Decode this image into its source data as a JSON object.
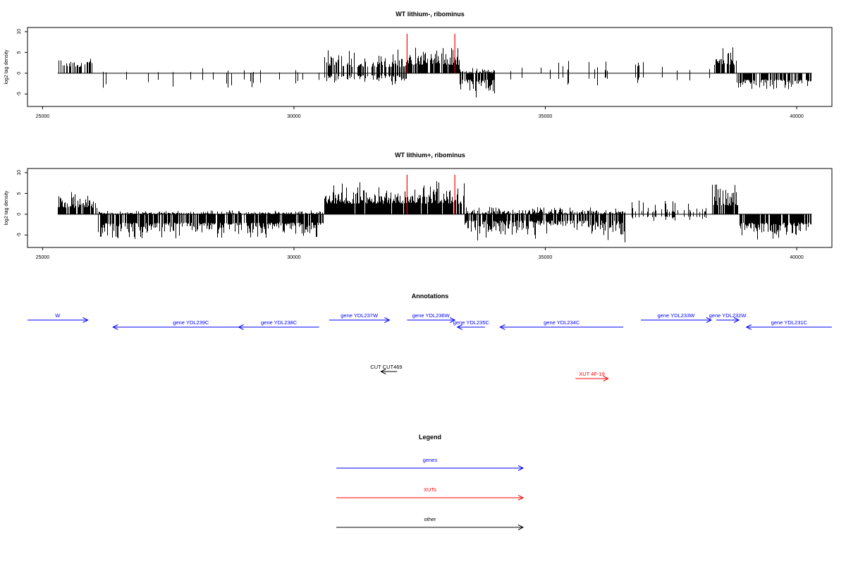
{
  "chart_data": [
    {
      "type": "bar",
      "title": "WT lithium-, ribominus",
      "ylabel": "log2 tag density",
      "xlabel": "",
      "xlim": [
        24700,
        40700
      ],
      "ylim": [
        -8,
        11
      ],
      "x_ticks": [
        "25000",
        "30000",
        "35000",
        "40000"
      ],
      "y_ticks": [
        "-5",
        "0",
        "5",
        "10"
      ],
      "data_range": [
        25300,
        40300
      ],
      "red_markers": [
        {
          "x": 32250,
          "y": 9.5
        },
        {
          "x": 33200,
          "y": 9.5
        }
      ],
      "segments": [
        {
          "from": 25300,
          "to": 26000,
          "density": 0.45,
          "pos": [
            1.5,
            4.0
          ],
          "neg": [
            0,
            0
          ]
        },
        {
          "from": 26000,
          "to": 30600,
          "density": 0.07,
          "pos": [
            0,
            1.5
          ],
          "neg": [
            -1.5,
            -4.0
          ]
        },
        {
          "from": 30600,
          "to": 32250,
          "density": 0.6,
          "pos": [
            1.5,
            6.0
          ],
          "neg": [
            -0.5,
            -3.0
          ]
        },
        {
          "from": 32250,
          "to": 33300,
          "density": 0.85,
          "pos": [
            2.0,
            7.5
          ],
          "neg": [
            0,
            0
          ]
        },
        {
          "from": 33300,
          "to": 34000,
          "density": 0.8,
          "pos": [
            0,
            1.5
          ],
          "neg": [
            -1.5,
            -6.0
          ]
        },
        {
          "from": 34000,
          "to": 38300,
          "density": 0.07,
          "pos": [
            0.5,
            3.5
          ],
          "neg": [
            -1.0,
            -3.5
          ]
        },
        {
          "from": 38300,
          "to": 38800,
          "density": 0.6,
          "pos": [
            2.0,
            7.0
          ],
          "neg": [
            0,
            0
          ]
        },
        {
          "from": 38800,
          "to": 40300,
          "density": 0.75,
          "pos": [
            0,
            0
          ],
          "neg": [
            -1.5,
            -4.5
          ]
        }
      ]
    },
    {
      "type": "bar",
      "title": "WT lithium+, ribominus",
      "ylabel": "log2 tag density",
      "xlabel": "",
      "xlim": [
        24700,
        40700
      ],
      "ylim": [
        -8,
        11
      ],
      "x_ticks": [
        "25000",
        "30000",
        "35000",
        "40000"
      ],
      "y_ticks": [
        "-5",
        "0",
        "5",
        "10"
      ],
      "data_range": [
        25300,
        40300
      ],
      "red_markers": [
        {
          "x": 32250,
          "y": 9.5
        },
        {
          "x": 33200,
          "y": 9.5
        }
      ],
      "segments": [
        {
          "from": 25300,
          "to": 26100,
          "density": 0.85,
          "pos": [
            1.5,
            5.5
          ],
          "neg": [
            0,
            0
          ]
        },
        {
          "from": 26100,
          "to": 30600,
          "density": 0.85,
          "pos": [
            0,
            1.0
          ],
          "neg": [
            -2.0,
            -6.5
          ]
        },
        {
          "from": 30600,
          "to": 32250,
          "density": 0.95,
          "pos": [
            2.5,
            8.0
          ],
          "neg": [
            0,
            0
          ]
        },
        {
          "from": 32250,
          "to": 33400,
          "density": 0.9,
          "pos": [
            2.5,
            8.5
          ],
          "neg": [
            0,
            0
          ]
        },
        {
          "from": 33400,
          "to": 36600,
          "density": 0.85,
          "pos": [
            0,
            2.0
          ],
          "neg": [
            -1.5,
            -7.0
          ]
        },
        {
          "from": 36600,
          "to": 38300,
          "density": 0.2,
          "pos": [
            0.5,
            4.0
          ],
          "neg": [
            -0.5,
            -2.0
          ]
        },
        {
          "from": 38300,
          "to": 38850,
          "density": 0.85,
          "pos": [
            2.0,
            8.5
          ],
          "neg": [
            0,
            0
          ]
        },
        {
          "from": 38850,
          "to": 40300,
          "density": 0.9,
          "pos": [
            0,
            0
          ],
          "neg": [
            -2.0,
            -7.0
          ]
        }
      ]
    }
  ],
  "annotations": {
    "title": "Annotations",
    "items": [
      {
        "label": "W",
        "kind": "gene",
        "from": 24700,
        "to": 25900,
        "dir": "right",
        "row": 0
      },
      {
        "label": "gene YDL239C",
        "kind": "gene",
        "from": 26400,
        "to": 29500,
        "dir": "left",
        "row": 1
      },
      {
        "label": "gene YDL238C",
        "kind": "gene",
        "from": 28900,
        "to": 30500,
        "dir": "left",
        "row": 1
      },
      {
        "label": "gene YDL237W",
        "kind": "gene",
        "from": 30700,
        "to": 31900,
        "dir": "right",
        "row": 0
      },
      {
        "label": "gene YDL236W",
        "kind": "gene",
        "from": 32250,
        "to": 33200,
        "dir": "right",
        "row": 0
      },
      {
        "label": "gene YDL235C",
        "kind": "gene",
        "from": 33250,
        "to": 33800,
        "dir": "left",
        "row": 1
      },
      {
        "label": "gene YDL234C",
        "kind": "gene",
        "from": 34100,
        "to": 36550,
        "dir": "left",
        "row": 1
      },
      {
        "label": "gene YDL233W",
        "kind": "gene",
        "from": 36900,
        "to": 38300,
        "dir": "right",
        "row": 0
      },
      {
        "label": "gene YDL232W",
        "kind": "gene",
        "from": 38400,
        "to": 38850,
        "dir": "right",
        "row": 0
      },
      {
        "label": "gene YDL231C",
        "kind": "gene",
        "from": 39000,
        "to": 40700,
        "dir": "left",
        "row": 1
      },
      {
        "label": "CUT CUT469",
        "kind": "other",
        "from": 31730,
        "to": 32050,
        "dir": "left",
        "row": 2
      },
      {
        "label": "XUT 4F-19",
        "kind": "xut",
        "from": 35600,
        "to": 36250,
        "dir": "right",
        "row": 3
      }
    ]
  },
  "legend": {
    "title": "Legend",
    "items": [
      {
        "label": "genes",
        "kind": "gene"
      },
      {
        "label": "XUTs",
        "kind": "xut"
      },
      {
        "label": "other",
        "kind": "other"
      }
    ]
  },
  "colors": {
    "gene": "#0000ff",
    "xut": "#ff0000",
    "other": "#000000",
    "marker": "#ff0000",
    "bars": "#000000"
  }
}
